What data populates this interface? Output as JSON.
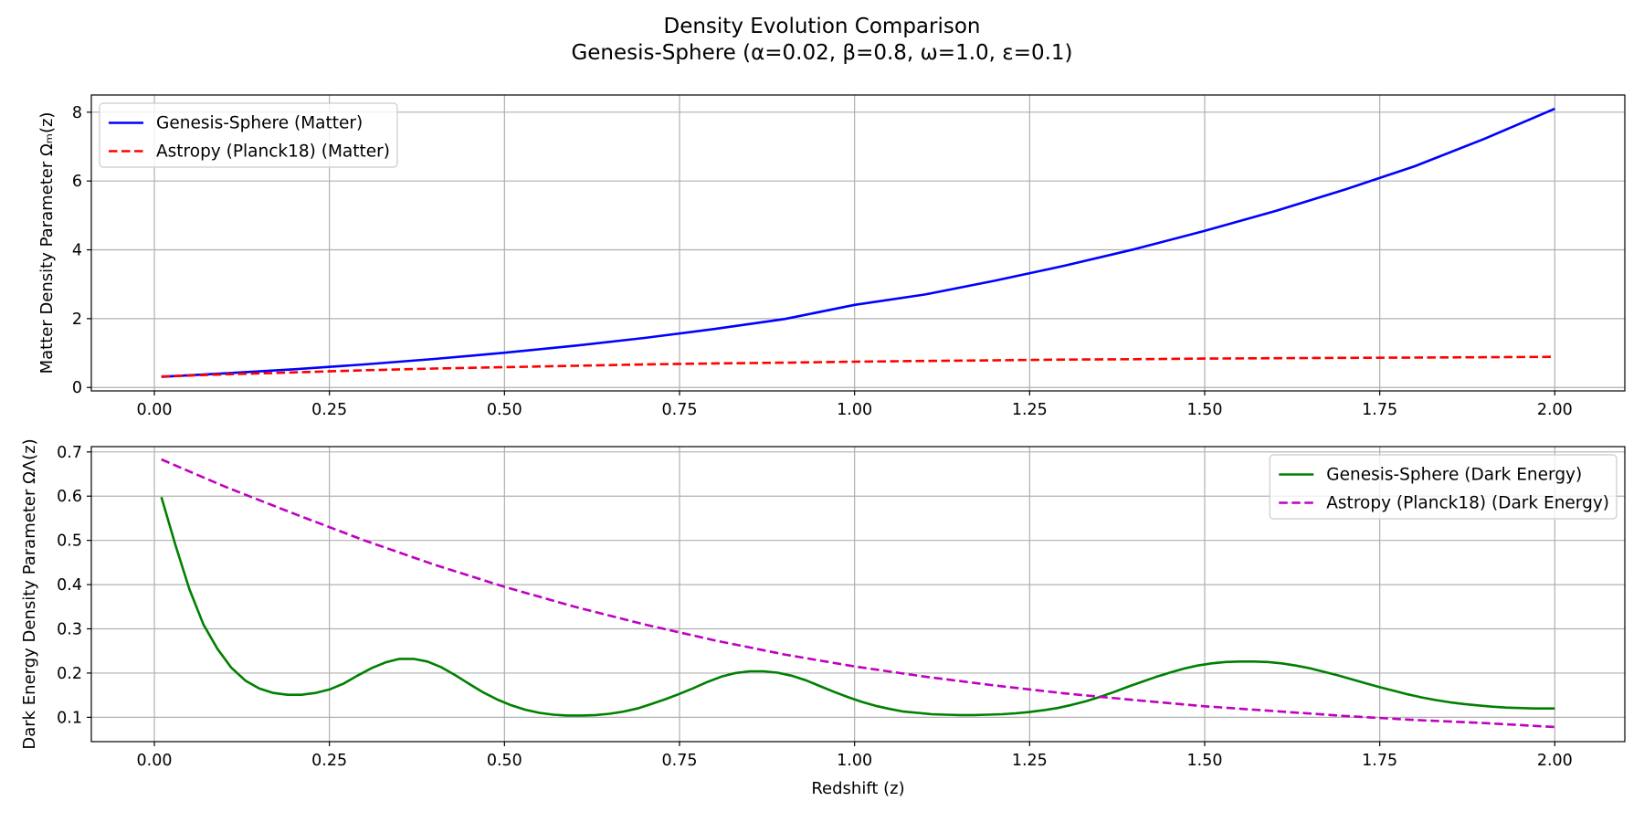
{
  "figure": {
    "title_line1": "Density Evolution Comparison",
    "title_line2": "Genesis-Sphere (α=0.02, β=0.8, ω=1.0, ε=0.1)"
  },
  "chart_data": [
    {
      "type": "line",
      "xlabel": "",
      "ylabel": "Matter Density Parameter Ωₘ(z)",
      "xlim": [
        -0.09,
        2.1
      ],
      "ylim": [
        -0.1,
        8.5
      ],
      "xticks": [
        0,
        0.25,
        0.5,
        0.75,
        1.0,
        1.25,
        1.5,
        1.75,
        2.0
      ],
      "xtick_labels": [
        "0.00",
        "0.25",
        "0.50",
        "0.75",
        "1.00",
        "1.25",
        "1.50",
        "1.75",
        "2.00"
      ],
      "yticks": [
        0,
        2,
        4,
        6,
        8
      ],
      "ytick_labels": [
        "0",
        "2",
        "4",
        "6",
        "8"
      ],
      "grid": true,
      "legend_position": "upper-left",
      "series": [
        {
          "name": "Genesis-Sphere (Matter)",
          "color": "#0000ff",
          "style": "solid",
          "x": [
            0.01,
            0.1,
            0.2,
            0.3,
            0.4,
            0.5,
            0.6,
            0.7,
            0.8,
            0.9,
            1.0,
            1.1,
            1.2,
            1.3,
            1.4,
            1.5,
            1.6,
            1.7,
            1.8,
            1.9,
            2.0
          ],
          "y": [
            0.31,
            0.41,
            0.53,
            0.67,
            0.83,
            1.01,
            1.21,
            1.44,
            1.7,
            1.99,
            2.4,
            2.7,
            3.1,
            3.54,
            4.02,
            4.55,
            5.12,
            5.75,
            6.43,
            7.23,
            8.1
          ]
        },
        {
          "name": "Astropy (Planck18) (Matter)",
          "color": "#ff0000",
          "style": "dashed",
          "x": [
            0.01,
            0.1,
            0.2,
            0.3,
            0.4,
            0.5,
            0.6,
            0.7,
            0.8,
            0.9,
            1.0,
            1.1,
            1.2,
            1.3,
            1.4,
            1.5,
            1.6,
            1.7,
            1.8,
            1.9,
            2.0
          ],
          "y": [
            0.32,
            0.38,
            0.44,
            0.5,
            0.55,
            0.59,
            0.63,
            0.67,
            0.7,
            0.72,
            0.75,
            0.77,
            0.79,
            0.81,
            0.82,
            0.84,
            0.85,
            0.86,
            0.87,
            0.88,
            0.89
          ]
        }
      ]
    },
    {
      "type": "line",
      "xlabel": "Redshift (z)",
      "ylabel": "Dark Energy Density Parameter ΩΛ(z)",
      "xlim": [
        -0.09,
        2.1
      ],
      "ylim": [
        0.045,
        0.712
      ],
      "xticks": [
        0,
        0.25,
        0.5,
        0.75,
        1.0,
        1.25,
        1.5,
        1.75,
        2.0
      ],
      "xtick_labels": [
        "0.00",
        "0.25",
        "0.50",
        "0.75",
        "1.00",
        "1.25",
        "1.50",
        "1.75",
        "2.00"
      ],
      "yticks": [
        0.1,
        0.2,
        0.3,
        0.4,
        0.5,
        0.6,
        0.7
      ],
      "ytick_labels": [
        "0.1",
        "0.2",
        "0.3",
        "0.4",
        "0.5",
        "0.6",
        "0.7"
      ],
      "grid": true,
      "legend_position": "upper-right",
      "series": [
        {
          "name": "Genesis-Sphere (Dark Energy)",
          "color": "#008000",
          "style": "solid",
          "x": [
            0.01,
            0.03,
            0.05,
            0.07,
            0.09,
            0.11,
            0.13,
            0.15,
            0.17,
            0.19,
            0.21,
            0.23,
            0.25,
            0.27,
            0.29,
            0.31,
            0.33,
            0.35,
            0.37,
            0.39,
            0.41,
            0.43,
            0.45,
            0.47,
            0.49,
            0.51,
            0.53,
            0.55,
            0.57,
            0.59,
            0.61,
            0.63,
            0.65,
            0.67,
            0.69,
            0.71,
            0.73,
            0.75,
            0.77,
            0.79,
            0.81,
            0.83,
            0.85,
            0.87,
            0.89,
            0.91,
            0.93,
            0.95,
            0.97,
            0.99,
            1.01,
            1.03,
            1.05,
            1.07,
            1.09,
            1.11,
            1.13,
            1.15,
            1.17,
            1.19,
            1.21,
            1.23,
            1.25,
            1.27,
            1.29,
            1.31,
            1.33,
            1.35,
            1.37,
            1.39,
            1.41,
            1.43,
            1.45,
            1.47,
            1.49,
            1.51,
            1.53,
            1.55,
            1.57,
            1.59,
            1.61,
            1.63,
            1.65,
            1.67,
            1.69,
            1.71,
            1.73,
            1.75,
            1.77,
            1.79,
            1.81,
            1.83,
            1.85,
            1.87,
            1.89,
            1.91,
            1.93,
            1.95,
            1.97,
            2.0
          ],
          "y": [
            0.598,
            0.49,
            0.39,
            0.31,
            0.255,
            0.212,
            0.183,
            0.165,
            0.155,
            0.151,
            0.151,
            0.155,
            0.163,
            0.176,
            0.194,
            0.211,
            0.224,
            0.232,
            0.232,
            0.226,
            0.213,
            0.195,
            0.175,
            0.156,
            0.14,
            0.127,
            0.117,
            0.11,
            0.106,
            0.104,
            0.104,
            0.105,
            0.108,
            0.113,
            0.12,
            0.13,
            0.141,
            0.153,
            0.166,
            0.18,
            0.192,
            0.2,
            0.204,
            0.204,
            0.201,
            0.194,
            0.184,
            0.171,
            0.158,
            0.146,
            0.135,
            0.126,
            0.119,
            0.113,
            0.11,
            0.107,
            0.106,
            0.105,
            0.105,
            0.106,
            0.107,
            0.109,
            0.112,
            0.116,
            0.121,
            0.128,
            0.136,
            0.146,
            0.157,
            0.169,
            0.18,
            0.191,
            0.201,
            0.21,
            0.217,
            0.222,
            0.225,
            0.226,
            0.226,
            0.225,
            0.222,
            0.217,
            0.211,
            0.203,
            0.195,
            0.186,
            0.177,
            0.168,
            0.16,
            0.152,
            0.145,
            0.139,
            0.134,
            0.13,
            0.127,
            0.124,
            0.122,
            0.121,
            0.12,
            0.12
          ]
        },
        {
          "name": "Astropy (Planck18) (Dark Energy)",
          "color": "#bf00bf",
          "style": "dashed",
          "x": [
            0.01,
            0.1,
            0.2,
            0.3,
            0.4,
            0.5,
            0.6,
            0.7,
            0.8,
            0.9,
            1.0,
            1.1,
            1.2,
            1.3,
            1.4,
            1.5,
            1.6,
            1.7,
            1.8,
            1.9,
            2.0
          ],
          "y": [
            0.683,
            0.622,
            0.56,
            0.5,
            0.445,
            0.395,
            0.35,
            0.31,
            0.274,
            0.242,
            0.215,
            0.192,
            0.172,
            0.154,
            0.139,
            0.125,
            0.114,
            0.103,
            0.094,
            0.087,
            0.078
          ]
        }
      ]
    }
  ]
}
